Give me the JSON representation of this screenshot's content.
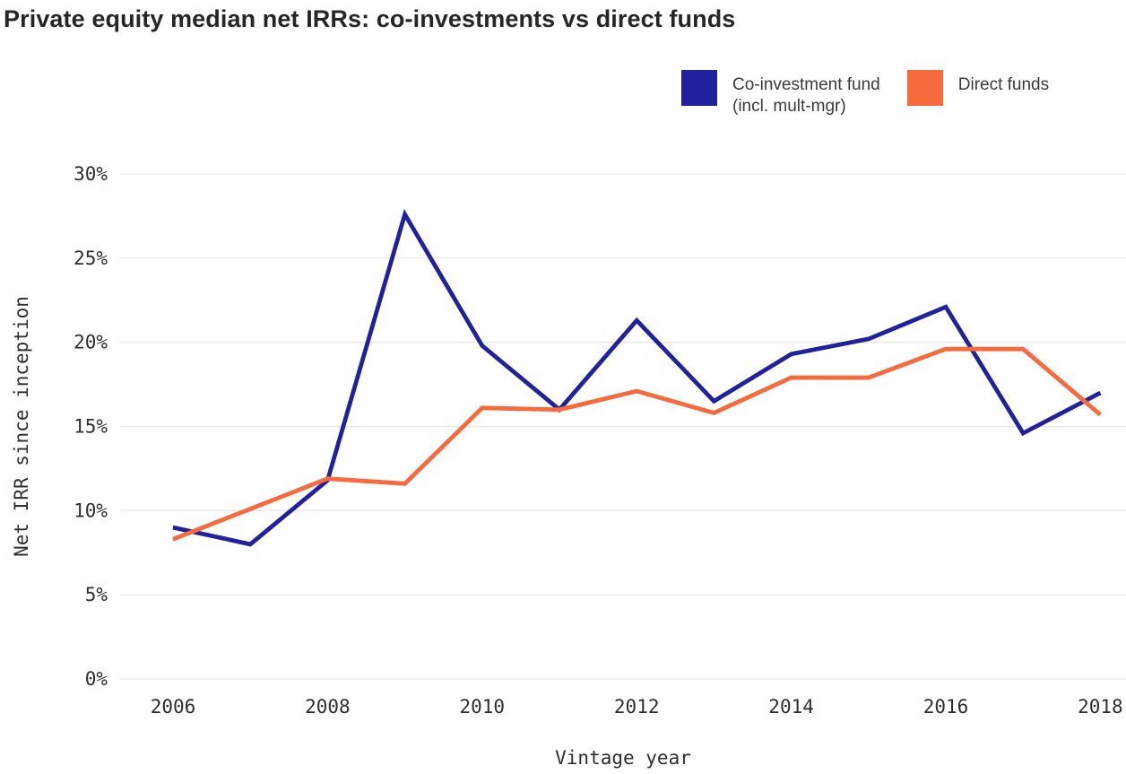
{
  "title": "Private equity median net IRRs: co-investments vs direct funds",
  "legend": {
    "items": [
      {
        "label": "Co-investment fund (incl. mult-mgr)",
        "label_lines": [
          "Co-investment fund",
          "(incl. mult-mgr)"
        ],
        "color": "#21219e"
      },
      {
        "label": "Direct funds",
        "label_lines": [
          "Direct funds"
        ],
        "color": "#f76a3c"
      }
    ]
  },
  "chart_data": {
    "type": "line",
    "title": "Private equity median net IRRs: co-investments vs direct funds",
    "xlabel": "Vintage year",
    "ylabel": "Net IRR since inception",
    "x": [
      2006,
      2007,
      2008,
      2009,
      2010,
      2011,
      2012,
      2013,
      2014,
      2015,
      2016,
      2017,
      2018
    ],
    "series": [
      {
        "name": "Co-investment fund (incl. mult-mgr)",
        "color": "#21219e",
        "values": [
          9.0,
          8.0,
          11.8,
          27.6,
          19.8,
          16.0,
          21.3,
          16.5,
          19.3,
          20.2,
          22.1,
          14.6,
          17.0
        ]
      },
      {
        "name": "Direct funds",
        "color": "#f76a3c",
        "values": [
          8.3,
          10.1,
          11.9,
          11.6,
          16.1,
          16.0,
          17.1,
          15.8,
          17.9,
          17.9,
          19.6,
          19.6,
          15.7
        ]
      }
    ],
    "ylim": [
      0,
      30
    ],
    "ytick_step": 5,
    "ytick_suffix": "%",
    "yticks_labels": [
      "0%",
      "5%",
      "10%",
      "15%",
      "20%",
      "25%",
      "30%"
    ],
    "xticks": [
      2006,
      2008,
      2010,
      2012,
      2014,
      2016,
      2018
    ],
    "grid": "horizontal",
    "legend_position": "top-right"
  },
  "colors": {
    "grid": "#e9e9e9",
    "tick_text": "#2e2e2e",
    "title_text": "#262626",
    "legend_text": "#3a3a3a",
    "background": "#ffffff"
  }
}
